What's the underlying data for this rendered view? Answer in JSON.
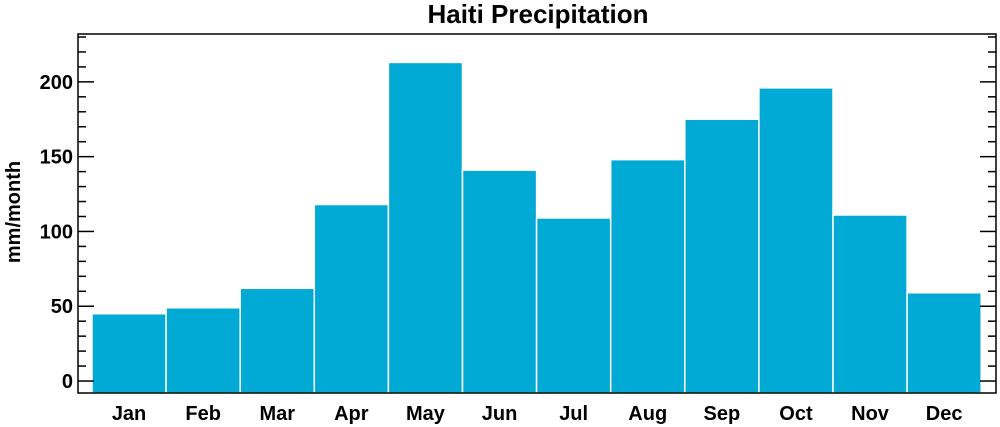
{
  "chart_data": {
    "type": "bar",
    "title": "Haiti Precipitation",
    "xlabel": "",
    "ylabel": "mm/month",
    "categories": [
      "Jan",
      "Feb",
      "Mar",
      "Apr",
      "May",
      "Jun",
      "Jul",
      "Aug",
      "Sep",
      "Oct",
      "Nov",
      "Dec"
    ],
    "values": [
      45,
      49,
      62,
      118,
      213,
      141,
      109,
      148,
      175,
      196,
      111,
      59
    ],
    "ylim": [
      -8,
      232
    ],
    "yticks": [
      0,
      50,
      100,
      150,
      200
    ],
    "yminor_step": 10,
    "bar_color": "#00aad4",
    "bar_edge_color": "#ffffff",
    "grid": false,
    "legend": "none"
  }
}
